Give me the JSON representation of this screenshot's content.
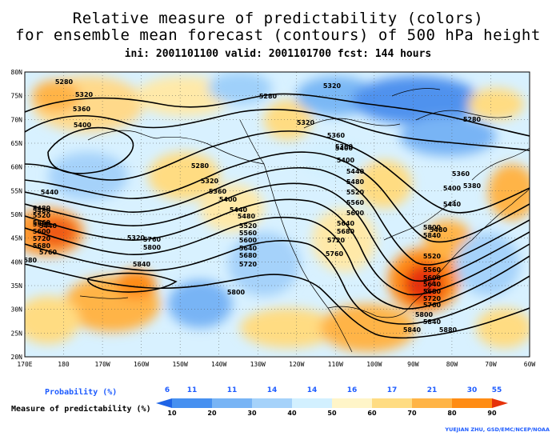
{
  "title": {
    "line1": "Relative measure of predictability (colors)",
    "line2": "for ensemble mean forecast (contours) of 500 hPa height",
    "line3": "ini: 2001101100 valid: 2001101700 fcst: 144 hours"
  },
  "map": {
    "lat_labels": [
      "80N",
      "75N",
      "70N",
      "65N",
      "60N",
      "55N",
      "50N",
      "45N",
      "40N",
      "35N",
      "30N",
      "25N",
      "20N"
    ],
    "lon_labels": [
      "170E",
      "180",
      "170W",
      "160W",
      "150W",
      "140W",
      "130W",
      "120W",
      "110W",
      "100W",
      "90W",
      "80W",
      "70W",
      "60W"
    ],
    "contour_labels": [
      {
        "t": "5320"
      },
      {
        "t": "5360"
      },
      {
        "t": "5400"
      },
      {
        "t": "5280"
      },
      {
        "t": "5320"
      },
      {
        "t": "5360"
      },
      {
        "t": "5400"
      },
      {
        "t": "5440"
      },
      {
        "t": "5480"
      },
      {
        "t": "5520"
      },
      {
        "t": "5560"
      },
      {
        "t": "5600"
      },
      {
        "t": "5720"
      },
      {
        "t": "5680"
      },
      {
        "t": "5760"
      },
      {
        "t": "5840"
      },
      {
        "t": "5800"
      },
      {
        "t": "5840"
      },
      {
        "t": "5280"
      },
      {
        "t": "5320"
      },
      {
        "t": "5360"
      },
      {
        "t": "5400"
      },
      {
        "t": "5440"
      },
      {
        "t": "5480"
      },
      {
        "t": "5520"
      },
      {
        "t": "5560"
      },
      {
        "t": "5600"
      },
      {
        "t": "5640"
      },
      {
        "t": "5680"
      },
      {
        "t": "5720"
      },
      {
        "t": "5760"
      },
      {
        "t": "5800"
      },
      {
        "t": "5320"
      },
      {
        "t": "5360"
      },
      {
        "t": "5400"
      },
      {
        "t": "5440"
      },
      {
        "t": "5480"
      },
      {
        "t": "5520"
      },
      {
        "t": "5560"
      },
      {
        "t": "5600"
      },
      {
        "t": "5640"
      },
      {
        "t": "5680"
      },
      {
        "t": "5720"
      },
      {
        "t": "5760"
      },
      {
        "t": "5800"
      },
      {
        "t": "5840"
      },
      {
        "t": "5280"
      },
      {
        "t": "5400"
      },
      {
        "t": "5440"
      },
      {
        "t": "5480"
      },
      {
        "t": "5520"
      },
      {
        "t": "5560"
      },
      {
        "t": "5600"
      },
      {
        "t": "5640"
      },
      {
        "t": "5680"
      },
      {
        "t": "5720"
      },
      {
        "t": "5760"
      },
      {
        "t": "5800"
      },
      {
        "t": "5840"
      },
      {
        "t": "5880"
      },
      {
        "t": "5380"
      },
      {
        "t": "5280"
      },
      {
        "t": "5320"
      },
      {
        "t": "5360"
      },
      {
        "t": "5440"
      },
      {
        "t": "5480"
      },
      {
        "t": "5560"
      },
      {
        "t": "5680"
      }
    ]
  },
  "legend": {
    "probability_title": "Probability (%)",
    "measure_title": "Measure of predictability (%)",
    "probability_values": [
      "6",
      "11",
      "11",
      "14",
      "14",
      "16",
      "17",
      "21",
      "30",
      "55"
    ],
    "measure_values": [
      "10",
      "20",
      "30",
      "40",
      "50",
      "60",
      "70",
      "80",
      "90"
    ],
    "colors": [
      "#1e64e6",
      "#4690f0",
      "#78b4f5",
      "#a5d2fa",
      "#d2f0ff",
      "#fff5c8",
      "#ffdc82",
      "#ffb446",
      "#ff8c14",
      "#e6320a"
    ]
  },
  "credit": "YUEJIAN ZHU, GSD/EMC/NCEP/NOAA"
}
